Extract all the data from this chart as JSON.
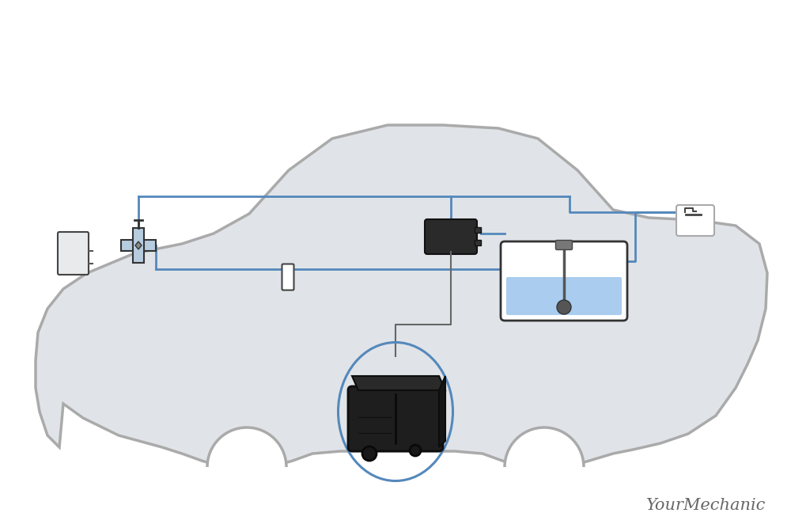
{
  "bg_color": "#ffffff",
  "car_fill": "#e0e4e8",
  "car_fill2": "#d0d5da",
  "car_outline": "#aaaaaa",
  "car_lw": 2.5,
  "tube_color": "#5588bb",
  "tube_lw": 2.0,
  "engine_fill": "#b8cce0",
  "engine_outline": "#444444",
  "fuel_fill": "#aaccee",
  "fuel_outline": "#333333",
  "canister_dark": "#1a1a1a",
  "canister_mid": "#2d2d2d",
  "circle_color": "#5588bb",
  "circle_lw": 2.2,
  "line_color": "#555555",
  "white": "#ffffff",
  "light_gray": "#e8eaec",
  "watermark": "YourMechanic",
  "watermark_color": "#666666"
}
